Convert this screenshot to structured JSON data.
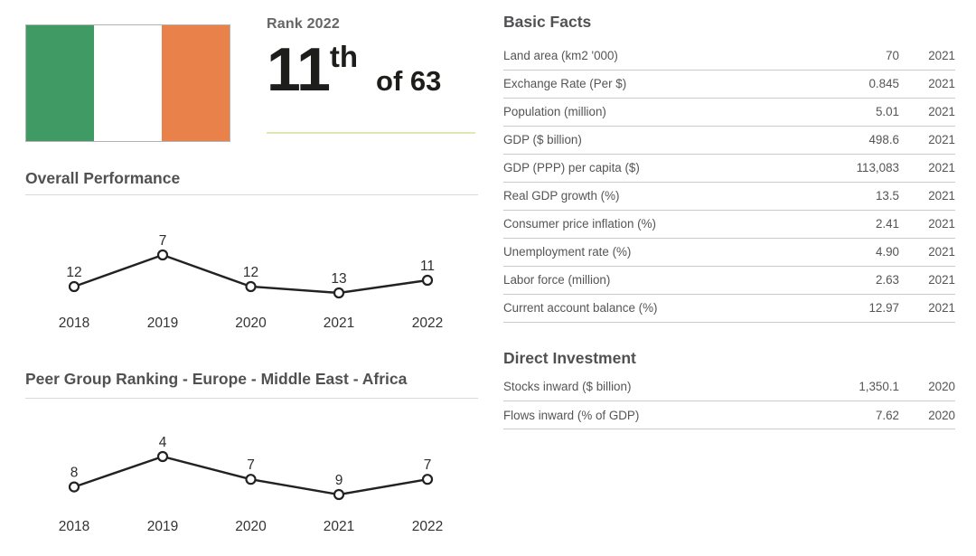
{
  "country": {
    "flag": {
      "name": "ireland-flag",
      "colors": {
        "green": "#3f9a64",
        "white": "#ffffff",
        "orange": "#e8814a"
      }
    },
    "rank": {
      "label": "Rank 2022",
      "value": "11",
      "ordinal": "th",
      "of": "of 63"
    }
  },
  "chart_data": [
    {
      "type": "line",
      "title": "Overall Performance",
      "categories": [
        "2018",
        "2019",
        "2020",
        "2021",
        "2022"
      ],
      "values": [
        12,
        7,
        12,
        13,
        11
      ],
      "ylabel": "rank",
      "y_inverted": true,
      "marker": "open-circle",
      "line_color": "#222222",
      "grid": false,
      "legend": "none"
    },
    {
      "type": "line",
      "title": "Peer Group Ranking - Europe - Middle East - Africa",
      "categories": [
        "2018",
        "2019",
        "2020",
        "2021",
        "2022"
      ],
      "values": [
        8,
        4,
        7,
        9,
        7
      ],
      "ylabel": "rank",
      "y_inverted": true,
      "marker": "open-circle",
      "line_color": "#222222",
      "grid": false,
      "legend": "none"
    }
  ],
  "basic_facts": {
    "title": "Basic Facts",
    "rows": [
      {
        "label": "Land area (km2 '000)",
        "value": "70",
        "year": "2021"
      },
      {
        "label": "Exchange Rate (Per $)",
        "value": "0.845",
        "year": "2021"
      },
      {
        "label": "Population (million)",
        "value": "5.01",
        "year": "2021"
      },
      {
        "label": "GDP ($ billion)",
        "value": "498.6",
        "year": "2021"
      },
      {
        "label": "GDP (PPP) per capita ($)",
        "value": "113,083",
        "year": "2021"
      },
      {
        "label": "Real GDP growth (%)",
        "value": "13.5",
        "year": "2021"
      },
      {
        "label": "Consumer price inflation (%)",
        "value": "2.41",
        "year": "2021"
      },
      {
        "label": "Unemployment rate (%)",
        "value": "4.90",
        "year": "2021"
      },
      {
        "label": "Labor force (million)",
        "value": "2.63",
        "year": "2021"
      },
      {
        "label": "Current account balance (%)",
        "value": "12.97",
        "year": "2021"
      }
    ]
  },
  "direct_investment": {
    "title": "Direct Investment",
    "rows": [
      {
        "label": "Stocks inward ($ billion)",
        "value": "1,350.1",
        "year": "2020"
      },
      {
        "label": "Flows inward (% of GDP)",
        "value": "7.62",
        "year": "2020"
      }
    ]
  }
}
